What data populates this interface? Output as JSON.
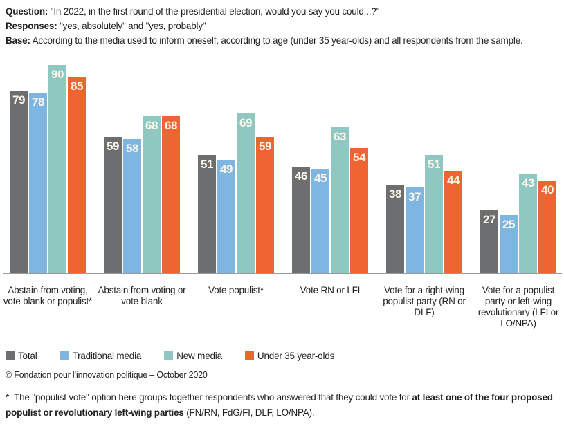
{
  "header": {
    "lines": [
      {
        "label": "Question:",
        "text": " \"In 2022, in the first round of the presidential election, would you say you could...?\""
      },
      {
        "label": "Responses:",
        "text": " \"yes, absolutely\" and \"yes, probably\""
      },
      {
        "label": "Base:",
        "text": " According to the media used to inform oneself, according to age (under 35 year-olds) and all respondents from the sample."
      }
    ]
  },
  "chart_data": {
    "type": "bar",
    "title": "",
    "categories": [
      "Abstain from voting, vote blank or populist*",
      "Abstain from voting or vote blank",
      "Vote populist*",
      "Vote RN or LFI",
      "Vote for a right-wing populist party (RN or DLF)",
      "Vote for a populist party or left-wing revolutionary (LFI or LO/NPA)"
    ],
    "series": [
      {
        "name": "Total",
        "color": "#6c6e70",
        "values": [
          79,
          59,
          51,
          46,
          38,
          27
        ]
      },
      {
        "name": "Traditional media",
        "color": "#7fb5e1",
        "values": [
          78,
          58,
          49,
          45,
          37,
          25
        ]
      },
      {
        "name": "New media",
        "color": "#8fc8c0",
        "values": [
          90,
          68,
          69,
          63,
          51,
          43
        ]
      },
      {
        "name": "Under 35 year-olds",
        "color": "#ee6432",
        "values": [
          85,
          68,
          59,
          54,
          44,
          40
        ]
      }
    ],
    "ylim": [
      0,
      100
    ],
    "value_labels": true,
    "grid": false,
    "legend_position": "bottom",
    "axis_color": "#97999b",
    "value_label_color": "#fdf6ea"
  },
  "footer": {
    "copyright": "© Fondation pour l’innovation politique – October 2020",
    "footnote_marker": "*",
    "footnote_pre": "The \"populist vote\" option here groups together respondents who answered that they could vote for ",
    "footnote_bold": "at least one of the four proposed populist or revolutionary left-wing parties",
    "footnote_post": " (FN/RN, FdG/FI, DLF, LO/NPA)."
  }
}
